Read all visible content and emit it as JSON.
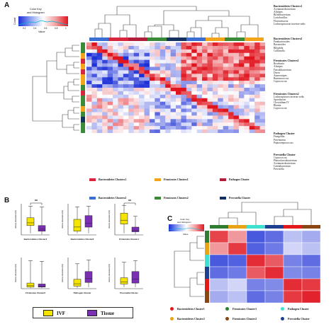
{
  "panels": {
    "A": "A",
    "B": "B",
    "C": "C"
  },
  "colors": {
    "Bacteroidetes Clusters1": "#d7263d",
    "Bacteroidetes Clusters2": "#3b6fd4",
    "Firmicutes Clusters1": "#f2a51a",
    "Firmicutes Clusters2": "#3a8a3a",
    "Pathogen Cluster": "#b01e3c",
    "Prevotella Cluster": "#16305e",
    "IVF": "#f5e400",
    "Tissue": "#7b2fb5",
    "C_Bacteroidetes Cluster1": "#e31a1c",
    "C_Bacteroidetes Cluster2": "#e8a317",
    "C_Firmicutes Cluster1": "#2e7d32",
    "C_Firmicutes Cluster2": "#8b4513",
    "C_Pathogen Cluster": "#40e0d0",
    "C_Prevotella Cluster": "#1f3f8f"
  },
  "panelA": {
    "colorkey": {
      "title1": "Color Key",
      "title2": "and Histogram",
      "ylabel": "Count",
      "xlabel": "Value",
      "ticks": [
        "0.2",
        "0.4",
        "0.6",
        "0.8",
        "1"
      ]
    },
    "clusters": [
      {
        "title": "Bacteroidetes Clusters1",
        "items": [
          "Acetanaerobacterium",
          "Alistipes",
          "Bifidobacterium",
          "Lactobacillus",
          "Flavonifractor",
          "Lachnospiraceae incertae sedis"
        ]
      },
      {
        "title": "Bacteroidetes Clusters2",
        "items": [
          "Parabacteroides",
          "Bacteroides",
          "Bilophila",
          "Collinsella"
        ]
      },
      {
        "title": "Firmicutes Clusters1",
        "items": [
          "Roseburia",
          "Alistipes",
          "Faecalibacterium",
          "Dorea",
          "Anaerostipes",
          "Ruminococcus",
          "Coprococcus"
        ]
      },
      {
        "title": "Firmicutes Clusters2",
        "items": [
          "Lachnospiracea incertae sedis",
          "Sporobacter",
          "Clostridium IV",
          "Blautia",
          "Coprococcus"
        ]
      },
      {
        "title": "Pathogen Cluster",
        "items": [
          "Finegoldia",
          "Parvimonas",
          "Peptostreptococcus"
        ]
      },
      {
        "title": "Prevotella Cluster",
        "items": [
          "Coprococcus",
          "Phascolarctobacterium",
          "Acetanaerobacterium",
          "Catenibacterium",
          "Prevotella"
        ]
      }
    ],
    "legend": [
      {
        "label": "Bacteroidetes Clusters1",
        "color_key": "Bacteroidetes Clusters1"
      },
      {
        "label": "Firmicutes Clusters1",
        "color_key": "Firmicutes Clusters1"
      },
      {
        "label": "Pathogen Cluster",
        "color_key": "Pathogen Cluster"
      },
      {
        "label": "Bacteroidetes Clusters2",
        "color_key": "Bacteroidetes Clusters2"
      },
      {
        "label": "Firmicutes Clusters2",
        "color_key": "Firmicutes Clusters2"
      },
      {
        "label": "Prevotella Cluster",
        "color_key": "Prevotella Cluster"
      }
    ]
  },
  "panelB": {
    "ylabel": "relative abundance(%)",
    "significance": "**",
    "plots": [
      {
        "title": "Bacteroidetes Cluster1",
        "sig": true
      },
      {
        "title": "Bacteroidetes Cluster2",
        "sig": false
      },
      {
        "title": "Firmicutes Cluster1",
        "sig": true
      },
      {
        "title": "Firmicutes Cluster2",
        "sig": false
      },
      {
        "title": "Pathogen Cluster",
        "sig": false
      },
      {
        "title": "Prevotella Cluster",
        "sig": false
      }
    ],
    "legend": [
      {
        "label": "IVF",
        "color_key": "IVF"
      },
      {
        "label": "Tissue",
        "color_key": "Tissue"
      }
    ]
  },
  "panelC": {
    "colorkey": {
      "title1": "Color Key",
      "title2": "and Histogram",
      "xlabel": "Value"
    },
    "matrix": [
      [
        0.9,
        0.72,
        0.1,
        0.15,
        0.35,
        0.3
      ],
      [
        0.72,
        0.92,
        0.12,
        0.18,
        0.4,
        0.35
      ],
      [
        0.1,
        0.12,
        0.95,
        0.85,
        0.2,
        0.15
      ],
      [
        0.15,
        0.18,
        0.85,
        0.95,
        0.22,
        0.2
      ],
      [
        0.35,
        0.4,
        0.2,
        0.22,
        0.95,
        0.92
      ],
      [
        0.3,
        0.35,
        0.15,
        0.2,
        0.92,
        0.97
      ]
    ],
    "legend": [
      {
        "label": "Bacteroidetes Cluster1",
        "color_key": "C_Bacteroidetes Cluster1"
      },
      {
        "label": "Firmicutes Cluster1",
        "color_key": "C_Firmicutes Cluster1"
      },
      {
        "label": "Pathogen Cluster",
        "color_key": "C_Pathogen Cluster"
      },
      {
        "label": "Bacteroidetes Cluster2",
        "color_key": "C_Bacteroidetes Cluster2"
      },
      {
        "label": "Firmicutes Cluster2",
        "color_key": "C_Firmicutes Cluster2"
      },
      {
        "label": "Prevotella Cluster",
        "color_key": "C_Prevotella Cluster"
      }
    ]
  }
}
